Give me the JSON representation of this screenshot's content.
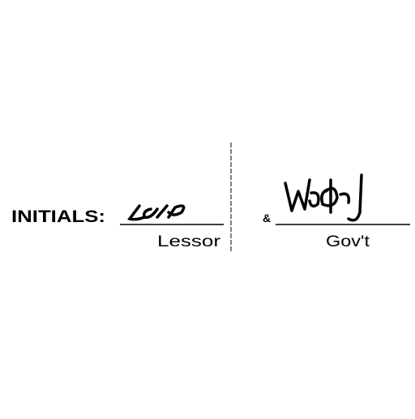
{
  "initials": {
    "label": "INITIALS:",
    "lessor_caption": "Lessor",
    "separator": "&",
    "government_caption": "Gov't"
  }
}
